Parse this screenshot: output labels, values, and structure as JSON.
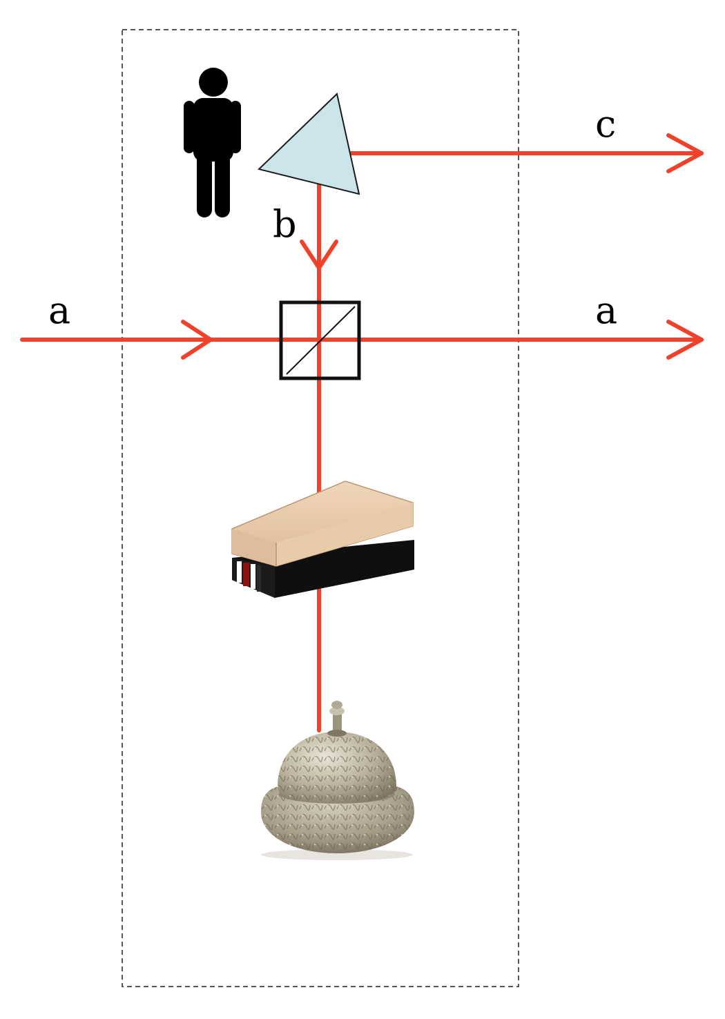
{
  "labels": {
    "input_beam": "a",
    "output_beam": "a",
    "down_beam": "b",
    "exit_beam": "c"
  },
  "colors": {
    "beam": "#f0422b",
    "box_border": "#555555",
    "prism_fill": "#cbe4ea",
    "splitter": "#111111",
    "figure": "#000000",
    "eraser_wood": "#e7c9a8",
    "eraser_felt": "#111111",
    "bell_metal": "#b5ad98"
  },
  "icons": [
    "person-icon",
    "prism-icon",
    "beam-splitter-icon",
    "eraser-icon",
    "bell-icon"
  ]
}
